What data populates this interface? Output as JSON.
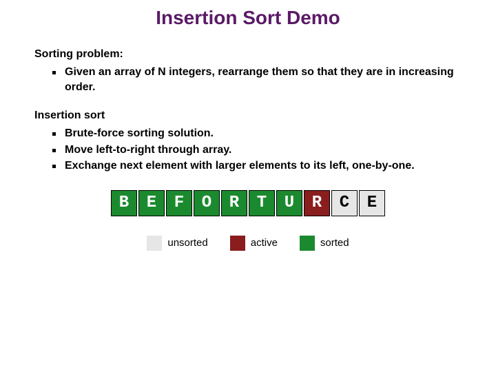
{
  "title": {
    "text": "Insertion Sort Demo",
    "color": "#5a1a66",
    "fontsize": 28
  },
  "section1": {
    "heading": "Sorting problem:",
    "bullets": [
      "Given an array of N integers, rearrange them so that they are in increasing order."
    ],
    "fontsize": 16
  },
  "section2": {
    "heading": "Insertion sort",
    "bullets": [
      "Brute-force sorting solution.",
      "Move left-to-right through array.",
      "Exchange next element with larger elements to its left, one-by-one."
    ],
    "fontsize": 16
  },
  "array": {
    "cell_fontsize": 24,
    "border_color": "#000000",
    "cells": [
      {
        "letter": "B",
        "state": "sorted"
      },
      {
        "letter": "E",
        "state": "sorted"
      },
      {
        "letter": "F",
        "state": "sorted"
      },
      {
        "letter": "O",
        "state": "sorted"
      },
      {
        "letter": "R",
        "state": "sorted"
      },
      {
        "letter": "T",
        "state": "sorted"
      },
      {
        "letter": "U",
        "state": "sorted"
      },
      {
        "letter": "R",
        "state": "active"
      },
      {
        "letter": "C",
        "state": "unsorted"
      },
      {
        "letter": "E",
        "state": "unsorted"
      }
    ]
  },
  "states": {
    "sorted": {
      "bg": "#1b8a2f",
      "fg": "#ffffff"
    },
    "active": {
      "bg": "#8a1d1d",
      "fg": "#ffffff"
    },
    "unsorted": {
      "bg": "#e6e6e6",
      "fg": "#000000"
    }
  },
  "legend": {
    "fontsize": 15,
    "items": [
      {
        "label": "unsorted",
        "state": "unsorted"
      },
      {
        "label": "active",
        "state": "active"
      },
      {
        "label": "sorted",
        "state": "sorted"
      }
    ]
  }
}
